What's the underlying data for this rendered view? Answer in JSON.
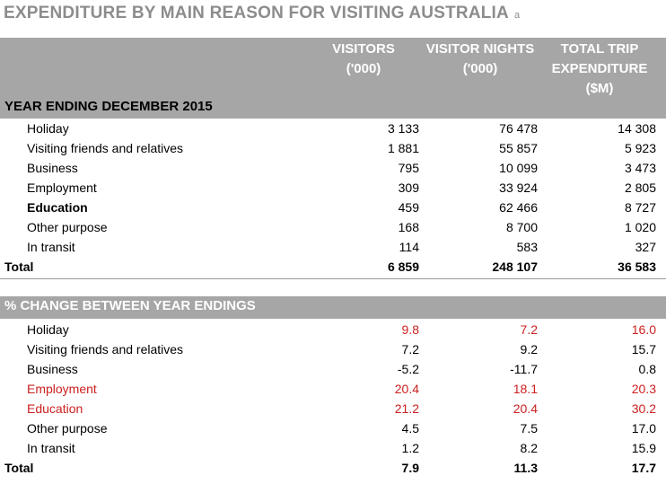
{
  "title": "EXPENDITURE BY MAIN REASON FOR VISITING AUSTRALIA",
  "title_note": "a",
  "columns": [
    "VISITORS ('000)",
    "VISITOR NIGHTS ('000)",
    "TOTAL TRIP EXPENDITURE ($M)"
  ],
  "sections": [
    {
      "title": "YEAR ENDING DECEMBER 2015",
      "rows": [
        {
          "label": "Holiday",
          "values": [
            "3 133",
            "76 478",
            "14 308"
          ]
        },
        {
          "label": "Visiting friends and relatives",
          "values": [
            "1 881",
            "55 857",
            "5 923"
          ]
        },
        {
          "label": "Business",
          "values": [
            "795",
            "10 099",
            "3 473"
          ]
        },
        {
          "label": "Employment",
          "values": [
            "309",
            "33 924",
            "2 805"
          ]
        },
        {
          "label": "Education",
          "values": [
            "459",
            "62 466",
            "8 727"
          ],
          "bold": true
        },
        {
          "label": "Other purpose",
          "values": [
            "168",
            "8 700",
            "1 020"
          ]
        },
        {
          "label": "In transit",
          "values": [
            "114",
            "583",
            "327"
          ]
        }
      ],
      "total": {
        "label": "Total",
        "values": [
          "6 859",
          "248 107",
          "36 583"
        ]
      }
    },
    {
      "title": "% CHANGE BETWEEN YEAR ENDINGS",
      "rows": [
        {
          "label": "Holiday",
          "values": [
            "9.8",
            "7.2",
            "16.0"
          ],
          "value_color": "#cc2020"
        },
        {
          "label": "Visiting friends and relatives",
          "values": [
            "7.2",
            "9.2",
            "15.7"
          ]
        },
        {
          "label": "Business",
          "values": [
            "-5.2",
            "-11.7",
            "0.8"
          ]
        },
        {
          "label": "Employment",
          "values": [
            "20.4",
            "18.1",
            "20.3"
          ],
          "value_color": "#cc2020",
          "label_color": "#cc2020"
        },
        {
          "label": "Education",
          "values": [
            "21.2",
            "20.4",
            "30.2"
          ],
          "value_color": "#cc2020",
          "label_color": "#cc2020"
        },
        {
          "label": "Other purpose",
          "values": [
            "4.5",
            "7.5",
            "17.0"
          ]
        },
        {
          "label": "In transit",
          "values": [
            "1.2",
            "8.2",
            "15.9"
          ]
        }
      ],
      "total": {
        "label": "Total",
        "values": [
          "7.9",
          "11.3",
          "17.7"
        ]
      }
    }
  ]
}
